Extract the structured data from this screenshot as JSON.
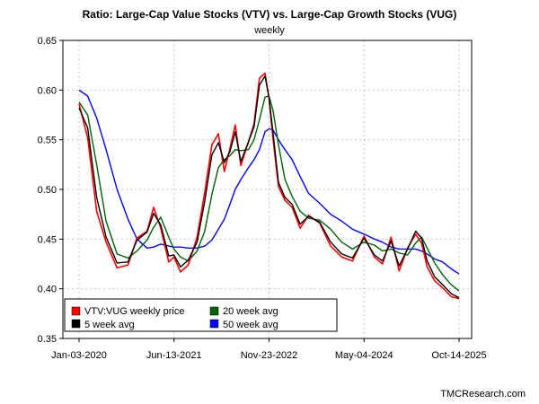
{
  "chart_data": {
    "type": "line",
    "title": "Ratio: Large-Cap Value Stocks (VTV) vs. Large-Cap Growth Stocks (VUG)",
    "subtitle": "weekly",
    "credit": "TMCResearch.com",
    "ylim": [
      0.35,
      0.65
    ],
    "yticks": [
      "0.35",
      "0.40",
      "0.45",
      "0.50",
      "0.55",
      "0.60",
      "0.65"
    ],
    "xticks": [
      "Jan-03-2020",
      "Jun-13-2021",
      "Nov-23-2022",
      "May-04-2024",
      "Oct-14-2025"
    ],
    "grid": true,
    "legend_position": "bottom-left",
    "legend": [
      {
        "label": "VTV:VUG weekly price",
        "color": "#ff0000"
      },
      {
        "label": "5 week avg",
        "color": "#000000"
      },
      {
        "label": "20 week avg",
        "color": "#006400"
      },
      {
        "label": "50 week avg",
        "color": "#0000ff"
      }
    ],
    "x": [
      "2020-01-03",
      "2020-02-20",
      "2020-04-10",
      "2020-06-01",
      "2020-08-01",
      "2020-10-01",
      "2020-11-20",
      "2021-01-15",
      "2021-02-20",
      "2021-04-01",
      "2021-05-15",
      "2021-06-13",
      "2021-07-20",
      "2021-09-01",
      "2021-10-20",
      "2021-12-01",
      "2022-01-10",
      "2022-02-15",
      "2022-03-20",
      "2022-04-20",
      "2022-05-20",
      "2022-06-20",
      "2022-08-01",
      "2022-09-01",
      "2022-10-01",
      "2022-11-01",
      "2022-11-23",
      "2022-12-15",
      "2023-01-15",
      "2023-02-20",
      "2023-04-01",
      "2023-05-15",
      "2023-07-01",
      "2023-09-01",
      "2023-11-01",
      "2024-01-01",
      "2024-03-01",
      "2024-05-04",
      "2024-07-01",
      "2024-08-15",
      "2024-10-01",
      "2024-11-15",
      "2025-01-01",
      "2025-02-15",
      "2025-03-20",
      "2025-04-20",
      "2025-06-01",
      "2025-07-15",
      "2025-09-01",
      "2025-10-14"
    ],
    "series": [
      {
        "name": "VTV:VUG weekly price",
        "values": [
          0.586,
          0.552,
          0.478,
          0.447,
          0.421,
          0.424,
          0.451,
          0.458,
          0.482,
          0.461,
          0.427,
          0.432,
          0.417,
          0.424,
          0.452,
          0.497,
          0.545,
          0.556,
          0.518,
          0.541,
          0.565,
          0.524,
          0.548,
          0.566,
          0.612,
          0.617,
          0.592,
          0.552,
          0.503,
          0.489,
          0.482,
          0.461,
          0.474,
          0.466,
          0.443,
          0.432,
          0.428,
          0.453,
          0.432,
          0.425,
          0.452,
          0.418,
          0.441,
          0.455,
          0.446,
          0.422,
          0.408,
          0.401,
          0.392,
          0.39
        ]
      },
      {
        "name": "5 week avg",
        "values": [
          0.582,
          0.562,
          0.492,
          0.452,
          0.426,
          0.427,
          0.449,
          0.457,
          0.476,
          0.464,
          0.433,
          0.434,
          0.422,
          0.429,
          0.447,
          0.488,
          0.535,
          0.547,
          0.527,
          0.538,
          0.558,
          0.528,
          0.548,
          0.563,
          0.605,
          0.614,
          0.593,
          0.558,
          0.507,
          0.492,
          0.485,
          0.465,
          0.473,
          0.467,
          0.447,
          0.435,
          0.431,
          0.451,
          0.434,
          0.428,
          0.448,
          0.423,
          0.44,
          0.458,
          0.451,
          0.428,
          0.412,
          0.404,
          0.395,
          0.391
        ]
      },
      {
        "name": "20 week avg",
        "values": [
          0.588,
          0.575,
          0.525,
          0.468,
          0.435,
          0.431,
          0.438,
          0.449,
          0.462,
          0.472,
          0.452,
          0.44,
          0.432,
          0.428,
          0.438,
          0.458,
          0.495,
          0.522,
          0.53,
          0.534,
          0.54,
          0.539,
          0.54,
          0.55,
          0.57,
          0.593,
          0.594,
          0.58,
          0.545,
          0.51,
          0.493,
          0.478,
          0.471,
          0.469,
          0.46,
          0.447,
          0.44,
          0.447,
          0.444,
          0.438,
          0.44,
          0.436,
          0.434,
          0.446,
          0.452,
          0.441,
          0.426,
          0.414,
          0.404,
          0.398
        ]
      },
      {
        "name": "50 week avg",
        "values": [
          0.6,
          0.594,
          0.572,
          0.54,
          0.5,
          0.47,
          0.45,
          0.441,
          0.442,
          0.445,
          0.443,
          0.442,
          0.442,
          0.441,
          0.441,
          0.443,
          0.449,
          0.46,
          0.47,
          0.485,
          0.5,
          0.51,
          0.522,
          0.53,
          0.54,
          0.558,
          0.561,
          0.56,
          0.55,
          0.54,
          0.53,
          0.513,
          0.496,
          0.486,
          0.475,
          0.468,
          0.46,
          0.455,
          0.45,
          0.447,
          0.442,
          0.44,
          0.44,
          0.44,
          0.438,
          0.435,
          0.43,
          0.427,
          0.42,
          0.415
        ]
      }
    ]
  }
}
